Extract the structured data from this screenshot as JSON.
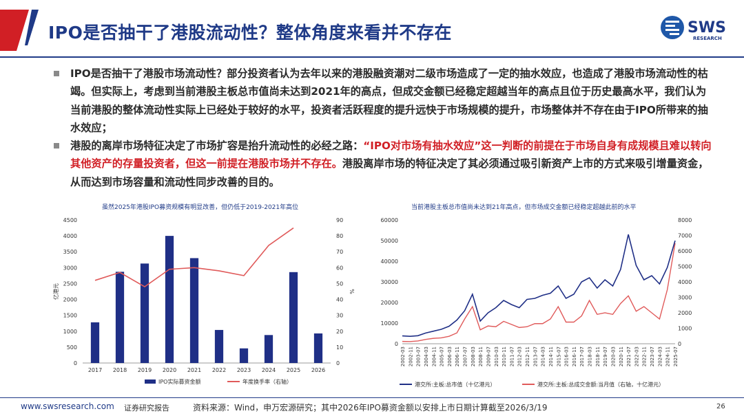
{
  "title": "IPO是否抽干了港股流动性？整体角度来看并不存在",
  "logo": {
    "brand": "SWS",
    "sub": "RESEARCH"
  },
  "bullets": [
    {
      "text": "IPO是否抽干了港股市场流动性？部分投资者认为去年以来的港股融资潮对二级市场造成了一定的抽水效应，也造成了港股市场流动性的枯竭。但实际上，考虑到当前港股主板总市值尚未达到2021年的高点，但成交金额已经稳定超越当年的高点且位于历史最高水平，我们认为当前港股的整体流动性实际上已经处于较好的水平，投资者活跃程度的提升远快于市场规模的提升，市场整体并不存在由于IPO所带来的抽水效应；"
    },
    {
      "text_a": "港股的离岸市场特征决定了市场扩容是抬升流动性的必经之路：",
      "text_red": "“IPO对市场有抽水效应”这一判断的前提在于市场自身有成规模且难以转向其他资产的存量投资者，但这一前提在港股市场并不存在。",
      "text_b": "港股离岸市场的特征决定了其必须通过吸引新资产上市的方式来吸引增量资金，从而达到市场容量和流动性同步改善的目的。"
    }
  ],
  "chart_data": [
    {
      "type": "bar",
      "title": "虽然2025年港股IPO募资规模有明显改善，但仍低于2019-2021年高位",
      "categories": [
        "2017",
        "2018",
        "2019",
        "2020",
        "2021",
        "2022",
        "2023",
        "2024",
        "2025",
        "2026"
      ],
      "series": [
        {
          "name": "IPO实际募资金额",
          "type": "bar",
          "axis": "left",
          "values": [
            1280,
            2870,
            3130,
            4000,
            3300,
            1040,
            460,
            880,
            2860,
            930
          ]
        },
        {
          "name": "年度换手率（右轴）",
          "type": "line",
          "axis": "right",
          "x": [
            "2017",
            "2018",
            "2019",
            "2020",
            "2021",
            "2022",
            "2023",
            "2024",
            "2025"
          ],
          "values": [
            52,
            57,
            48,
            59,
            60,
            58,
            55,
            74,
            85
          ]
        }
      ],
      "ylabel": "亿港元",
      "ylabel_right": "%",
      "ylim": [
        0,
        4500
      ],
      "yticks": [
        "0",
        "500",
        "1000",
        "1500",
        "2000",
        "2500",
        "3000",
        "3500",
        "4000",
        "4500"
      ],
      "ylim_right": [
        0,
        90
      ],
      "yticks_right": [
        "0",
        "10",
        "20",
        "30",
        "40",
        "50",
        "60",
        "70",
        "80",
        "90"
      ],
      "colors": {
        "bar": "#1f2f86",
        "line": "#e05a5a"
      }
    },
    {
      "type": "line",
      "title": "当前港股主板总市值尚未达到21年高点，但市场成交金额已经稳定超越此前的水平",
      "x_ticks": [
        "2002-03",
        "2002-11",
        "2003-07",
        "2004-03",
        "2004-11",
        "2005-07",
        "2006-03",
        "2006-11",
        "2007-07",
        "2008-03",
        "2008-11",
        "2009-07",
        "2010-03",
        "2010-11",
        "2011-07",
        "2012-03",
        "2012-11",
        "2013-07",
        "2014-03",
        "2014-11",
        "2015-07",
        "2016-03",
        "2016-11",
        "2017-07",
        "2018-03",
        "2018-11",
        "2019-07",
        "2020-03",
        "2020-11",
        "2021-07",
        "2022-03",
        "2022-11",
        "2023-07",
        "2024-03",
        "2024-11",
        "2025-07"
      ],
      "series": [
        {
          "name": "港交所:主板:总市值（十亿港元）",
          "axis": "left",
          "values": [
            3800,
            3600,
            3900,
            5200,
            6100,
            7000,
            8500,
            11500,
            16000,
            24000,
            11000,
            15000,
            17500,
            21000,
            19000,
            17500,
            21500,
            22000,
            23500,
            24500,
            28000,
            22000,
            24000,
            30000,
            32000,
            27000,
            31000,
            28000,
            36000,
            53000,
            38000,
            31000,
            33000,
            29000,
            37000,
            50000
          ]
        },
        {
          "name": "港交所:主板:总成交金额:当月值（右轴，十亿港元）",
          "axis": "right",
          "values": [
            150,
            140,
            180,
            280,
            350,
            380,
            480,
            700,
            1600,
            2400,
            900,
            1150,
            1100,
            1450,
            1250,
            1050,
            1100,
            1300,
            1300,
            1600,
            2400,
            1400,
            1400,
            1800,
            2800,
            1900,
            2000,
            1900,
            2600,
            3100,
            2100,
            2400,
            2000,
            1600,
            3500,
            6500
          ]
        }
      ],
      "ylim": [
        0,
        60000
      ],
      "yticks": [
        "0",
        "10000",
        "20000",
        "30000",
        "40000",
        "50000",
        "60000"
      ],
      "ylim_right": [
        0,
        8000
      ],
      "yticks_right": [
        "0",
        "1000",
        "2000",
        "3000",
        "4000",
        "5000",
        "6000",
        "7000",
        "8000"
      ],
      "colors": {
        "left": "#1f2f86",
        "right": "#e05a5a"
      }
    }
  ],
  "footer": {
    "url": "www.swsresearch.com",
    "report": "证券研究报告",
    "source": "资料来源：Wind，申万宏源研究；其中2026年IPO募资金额以安排上市日期计算截至2026/3/19",
    "page": "26"
  }
}
